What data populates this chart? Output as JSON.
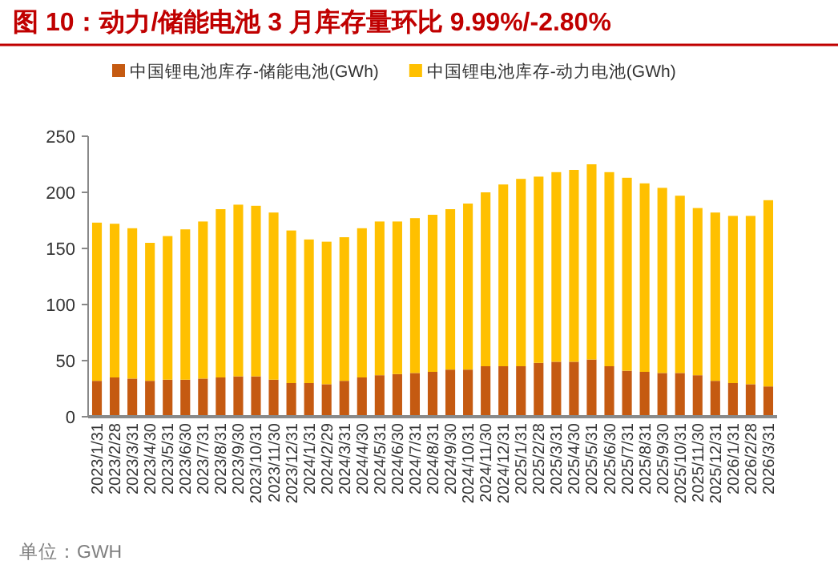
{
  "chart_data": {
    "type": "bar",
    "stacked": true,
    "title": "图 10：动力/储能电池 3 月库存量环比 9.99%/-2.80%",
    "annotations": [
      "单位：GWH"
    ],
    "categories": [
      "2023/1/31",
      "2023/2/28",
      "2023/3/31",
      "2023/4/30",
      "2023/5/31",
      "2023/6/30",
      "2023/7/31",
      "2023/8/31",
      "2023/9/30",
      "2023/10/31",
      "2023/11/30",
      "2023/12/31",
      "2024/1/31",
      "2024/2/29",
      "2024/3/31",
      "2024/4/30",
      "2024/5/31",
      "2024/6/30",
      "2024/7/31",
      "2024/8/31",
      "2024/9/30",
      "2024/10/31",
      "2024/11/30",
      "2024/12/31",
      "2025/1/31",
      "2025/2/28",
      "2025/3/31",
      "2025/4/30",
      "2025/5/31",
      "2025/6/30",
      "2025/7/31",
      "2025/8/31",
      "2025/9/30",
      "2025/10/31",
      "2025/11/30",
      "2025/12/31",
      "2026/1/31",
      "2026/2/28",
      "2026/3/31"
    ],
    "series": [
      {
        "name": "中国锂电池库存-储能电池(GWh)",
        "color": "#c55a11",
        "values": [
          32,
          35,
          34,
          32,
          33,
          33,
          34,
          35,
          36,
          36,
          33,
          30,
          30,
          29,
          32,
          35,
          37,
          38,
          39,
          40,
          42,
          42,
          45,
          45,
          45,
          48,
          49,
          49,
          51,
          45,
          41,
          40,
          39,
          39,
          37,
          32,
          30,
          29,
          27
        ]
      },
      {
        "name": "中国锂电池库存-动力电池(GWh)",
        "color": "#ffc000",
        "values": [
          141,
          137,
          134,
          123,
          128,
          134,
          140,
          150,
          153,
          152,
          149,
          136,
          128,
          127,
          128,
          133,
          137,
          136,
          138,
          140,
          143,
          148,
          155,
          162,
          167,
          166,
          169,
          171,
          174,
          173,
          172,
          168,
          165,
          158,
          149,
          150,
          149,
          150,
          166
        ]
      }
    ],
    "ylim": [
      0,
      250
    ],
    "yticks": [
      0,
      50,
      100,
      150,
      200,
      250
    ],
    "legend": "top"
  }
}
